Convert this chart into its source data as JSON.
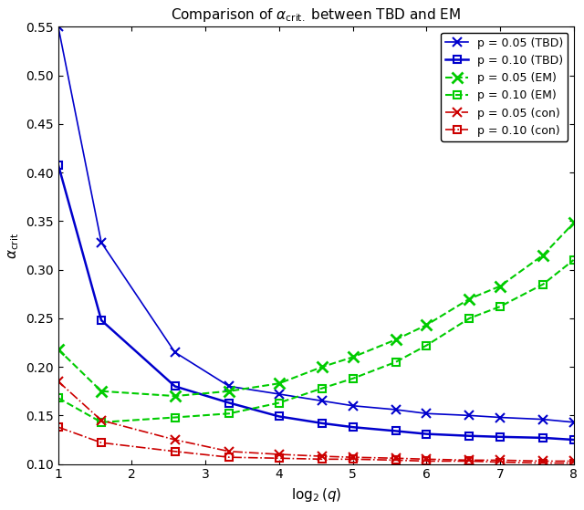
{
  "title": "Comparison of $\\alpha_{\\mathrm{crit.}}$ between TBD and EM",
  "xlabel": "$\\log_2(q)$",
  "ylabel": "$\\alpha_{\\mathrm{crit}}$",
  "xlim": [
    1,
    8
  ],
  "ylim": [
    0.1,
    0.55
  ],
  "yticks": [
    0.1,
    0.15,
    0.2,
    0.25,
    0.3,
    0.35,
    0.4,
    0.45,
    0.5,
    0.55
  ],
  "xticks": [
    1,
    2,
    3,
    4,
    5,
    6,
    7,
    8
  ],
  "x": [
    1,
    1.585,
    2.585,
    3.322,
    4.0,
    4.585,
    5.0,
    5.585,
    6.0,
    6.585,
    7.0,
    7.585,
    8.0
  ],
  "TBD_p005_y": [
    0.55,
    0.328,
    0.215,
    0.18,
    0.172,
    0.165,
    0.16,
    0.156,
    0.152,
    0.15,
    0.148,
    0.146,
    0.143
  ],
  "TBD_p010_y": [
    0.408,
    0.248,
    0.18,
    0.163,
    0.149,
    0.142,
    0.138,
    0.134,
    0.131,
    0.129,
    0.128,
    0.127,
    0.125
  ],
  "EM_p005_y": [
    0.218,
    0.175,
    0.17,
    0.175,
    0.183,
    0.2,
    0.21,
    0.228,
    0.243,
    0.27,
    0.283,
    0.315,
    0.348
  ],
  "EM_p010_y": [
    0.168,
    0.143,
    0.148,
    0.152,
    0.163,
    0.178,
    0.188,
    0.205,
    0.222,
    0.25,
    0.262,
    0.285,
    0.31
  ],
  "con_p005_y": [
    0.185,
    0.145,
    0.125,
    0.113,
    0.11,
    0.108,
    0.107,
    0.106,
    0.105,
    0.104,
    0.104,
    0.103,
    0.103
  ],
  "con_p010_y": [
    0.138,
    0.122,
    0.113,
    0.107,
    0.106,
    0.105,
    0.105,
    0.104,
    0.103,
    0.103,
    0.102,
    0.101,
    0.101
  ],
  "color_blue": "#0000CC",
  "color_green": "#00CC00",
  "color_red": "#CC0000",
  "legend_labels": [
    "p = 0.05 (TBD)",
    "p = 0.10 (TBD)",
    "p = 0.05 (EM)",
    "p = 0.10 (EM)",
    "p = 0.05 (con)",
    "p = 0.10 (con)"
  ],
  "figsize": [
    6.4,
    5.59
  ],
  "dpi": 100
}
